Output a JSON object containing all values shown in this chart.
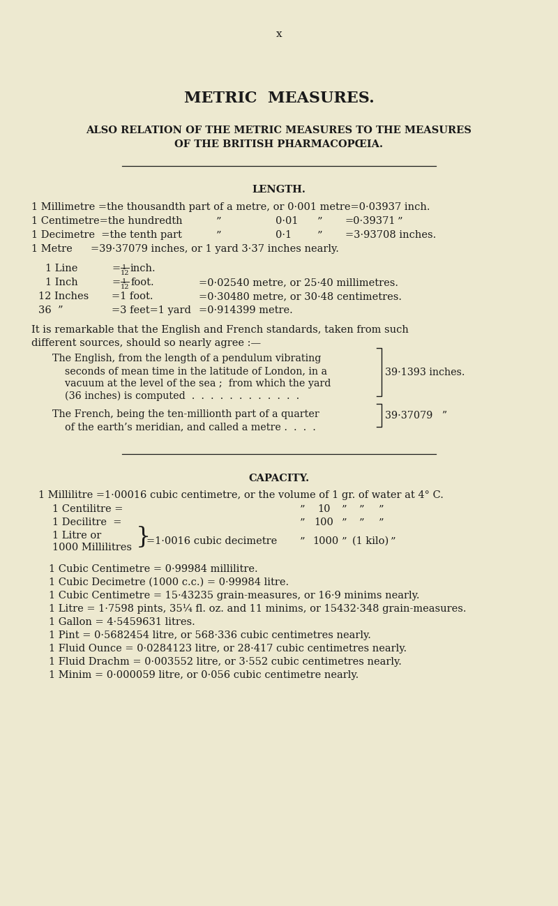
{
  "bg_color": "#ede9d0",
  "text_color": "#1a1a1a",
  "page_number": "x",
  "title": "METRIC  MEASURES.",
  "subtitle1": "ALSO RELATION OF THE METRIC MEASURES TO THE MEASURES",
  "subtitle2": "OF THE BRITISH PHARMACOPŒIA.",
  "section_length": "LENGTH.",
  "section_capacity": "CAPACITY.",
  "capacity_top": "1 Millilitre =1·00016 cubic centimetre, or the volume of 1 gr. of water at 4° C.",
  "capacity_lines": [
    "1 Cubic Centimetre = 0·99984 millilitre.",
    "1 Cubic Decimetre (1000 c.c.) = 0·99984 litre.",
    "1 Cubic Centimetre = 15·43235 grain-measures, or 16·9 minims nearly.",
    "1 Litre = 1·7598 pints, 35¼ fl. oz. and 11 minims, or 15432·348 grain-measures.",
    "1 Gallon = 4·5459631 litres.",
    "1 Pint = 0·5682454 litre, or 568·336 cubic centimetres nearly.",
    "1 Fluid Ounce = 0·0284123 litre, or 28·417 cubic centimetres nearly.",
    "1 Fluid Drachm = 0·003552 litre, or 3·552 cubic centimetres nearly.",
    "1 Minim = 0·000059 litre, or 0·056 cubic centimetre nearly."
  ],
  "english_value": "39·1393 inches.",
  "french_value": "39·37079   ”"
}
